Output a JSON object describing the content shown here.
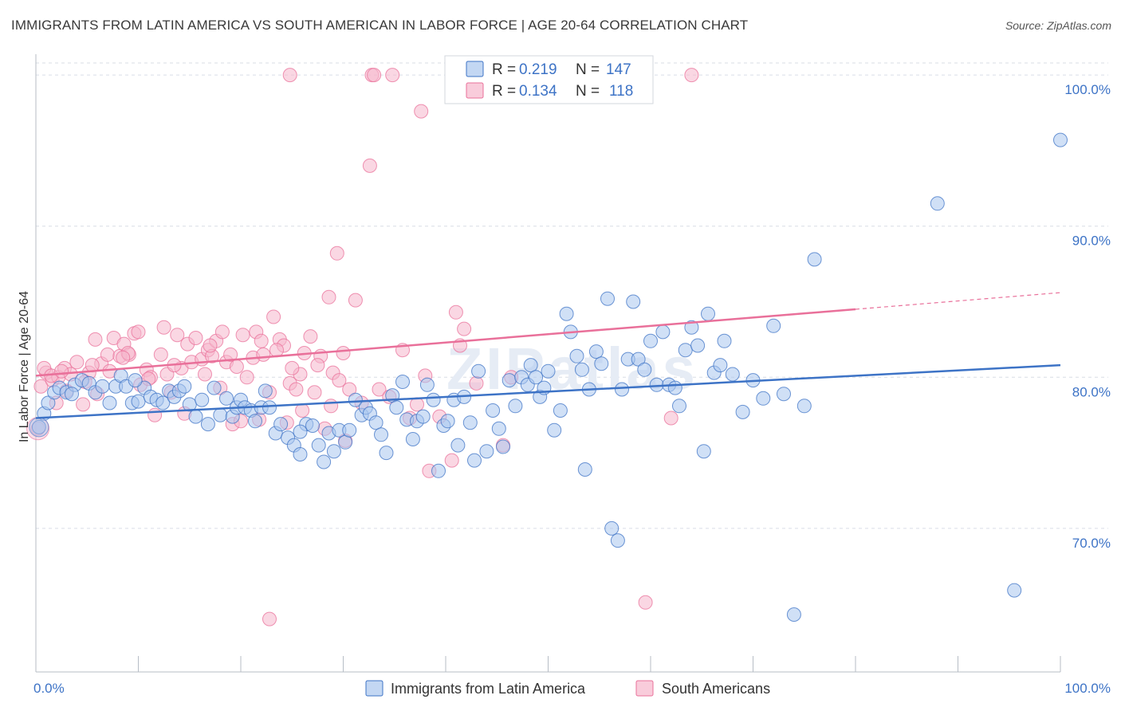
{
  "header": {
    "title": "IMMIGRANTS FROM LATIN AMERICA VS SOUTH AMERICAN IN LABOR FORCE | AGE 20-64 CORRELATION CHART",
    "source": "Source: ZipAtlas.com"
  },
  "watermark": "ZIPatlas",
  "colors": {
    "blue": "#3d73c6",
    "blue_fill": "#a9c6ee",
    "pink": "#e9709a",
    "pink_fill": "#f6b7cc",
    "grid": "#d9dee6",
    "axis": "#b7bdc6"
  },
  "legend": {
    "r_label": "R =",
    "n_label": "N =",
    "blue": {
      "r": "0.219",
      "n": "147"
    },
    "pink": {
      "r": "0.134",
      "n": "118"
    }
  },
  "chart_data": {
    "type": "scatter",
    "xlabel": "",
    "ylabel": "In Labor Force | Age 20-64",
    "xlim": [
      0,
      100
    ],
    "ylim": [
      60.5,
      101.8
    ],
    "y_ticks": [
      70,
      80,
      90,
      100
    ],
    "y_tick_labels": [
      "70.0%",
      "80.0%",
      "90.0%",
      "100.0%"
    ],
    "x_tick_labels": [
      "0.0%",
      "100.0%"
    ],
    "grid": true,
    "legend_position": "top-center",
    "series": [
      {
        "name": "Immigrants from Latin America",
        "color": "#3d73c6",
        "trend": {
          "x": [
            0,
            100
          ],
          "y": [
            77.3,
            80.8
          ]
        },
        "points": [
          [
            0.3,
            76.7
          ],
          [
            0.8,
            77.6
          ],
          [
            1.2,
            78.3
          ],
          [
            1.8,
            79.0
          ],
          [
            2.3,
            79.3
          ],
          [
            3.0,
            79.0
          ],
          [
            3.8,
            79.5
          ],
          [
            4.5,
            79.8
          ],
          [
            5.2,
            79.6
          ],
          [
            5.8,
            79.0
          ],
          [
            6.5,
            79.4
          ],
          [
            7.2,
            78.3
          ],
          [
            7.8,
            79.4
          ],
          [
            8.3,
            80.1
          ],
          [
            8.8,
            79.4
          ],
          [
            9.4,
            78.3
          ],
          [
            10.0,
            78.4
          ],
          [
            10.6,
            79.3
          ],
          [
            11.2,
            78.7
          ],
          [
            11.8,
            78.5
          ],
          [
            12.4,
            78.3
          ],
          [
            13.0,
            79.1
          ],
          [
            13.5,
            78.7
          ],
          [
            14.0,
            79.1
          ],
          [
            14.5,
            79.4
          ],
          [
            15.0,
            78.2
          ],
          [
            15.6,
            77.4
          ],
          [
            16.2,
            78.5
          ],
          [
            16.8,
            76.9
          ],
          [
            17.4,
            79.3
          ],
          [
            18.0,
            77.5
          ],
          [
            18.6,
            78.6
          ],
          [
            19.2,
            77.4
          ],
          [
            19.6,
            78.0
          ],
          [
            20.0,
            78.5
          ],
          [
            20.4,
            78.0
          ],
          [
            21.0,
            77.8
          ],
          [
            21.4,
            77.1
          ],
          [
            22.0,
            78.0
          ],
          [
            22.4,
            79.1
          ],
          [
            22.8,
            78.0
          ],
          [
            23.4,
            76.3
          ],
          [
            23.9,
            76.9
          ],
          [
            24.6,
            76.0
          ],
          [
            25.2,
            75.5
          ],
          [
            25.8,
            74.9
          ],
          [
            26.4,
            76.9
          ],
          [
            27.0,
            76.8
          ],
          [
            27.6,
            75.5
          ],
          [
            28.1,
            74.4
          ],
          [
            28.6,
            76.3
          ],
          [
            29.1,
            75.1
          ],
          [
            29.6,
            76.5
          ],
          [
            30.2,
            75.7
          ],
          [
            30.6,
            76.5
          ],
          [
            31.2,
            78.5
          ],
          [
            31.8,
            77.5
          ],
          [
            32.2,
            78.0
          ],
          [
            32.6,
            77.6
          ],
          [
            33.2,
            77.0
          ],
          [
            33.7,
            76.2
          ],
          [
            34.2,
            75.0
          ],
          [
            34.8,
            78.8
          ],
          [
            35.2,
            78.0
          ],
          [
            35.8,
            79.7
          ],
          [
            36.2,
            77.2
          ],
          [
            36.8,
            75.9
          ],
          [
            37.2,
            77.1
          ],
          [
            37.8,
            77.4
          ],
          [
            38.2,
            79.5
          ],
          [
            38.8,
            78.5
          ],
          [
            39.3,
            73.8
          ],
          [
            39.8,
            76.8
          ],
          [
            40.2,
            77.1
          ],
          [
            40.8,
            78.5
          ],
          [
            41.2,
            75.5
          ],
          [
            41.8,
            78.7
          ],
          [
            42.4,
            77.0
          ],
          [
            42.8,
            74.5
          ],
          [
            43.2,
            80.4
          ],
          [
            44.0,
            75.1
          ],
          [
            44.6,
            77.8
          ],
          [
            45.2,
            76.6
          ],
          [
            45.6,
            75.4
          ],
          [
            46.2,
            79.8
          ],
          [
            46.8,
            78.1
          ],
          [
            47.4,
            80.0
          ],
          [
            48.0,
            79.5
          ],
          [
            48.3,
            80.8
          ],
          [
            48.8,
            80.0
          ],
          [
            49.2,
            78.7
          ],
          [
            49.6,
            79.3
          ],
          [
            50.0,
            80.4
          ],
          [
            50.6,
            76.5
          ],
          [
            51.2,
            77.8
          ],
          [
            51.8,
            84.2
          ],
          [
            52.2,
            83.0
          ],
          [
            52.8,
            81.4
          ],
          [
            53.3,
            80.5
          ],
          [
            53.6,
            73.9
          ],
          [
            54.0,
            79.2
          ],
          [
            54.7,
            81.7
          ],
          [
            55.2,
            80.9
          ],
          [
            55.8,
            85.2
          ],
          [
            56.2,
            70.0
          ],
          [
            56.8,
            69.2
          ],
          [
            57.2,
            79.2
          ],
          [
            57.8,
            81.2
          ],
          [
            58.3,
            85.0
          ],
          [
            58.8,
            81.2
          ],
          [
            59.4,
            80.5
          ],
          [
            60.0,
            82.4
          ],
          [
            60.6,
            79.5
          ],
          [
            61.2,
            83.0
          ],
          [
            61.8,
            79.5
          ],
          [
            62.4,
            79.3
          ],
          [
            62.8,
            78.1
          ],
          [
            63.4,
            81.8
          ],
          [
            64.0,
            83.3
          ],
          [
            64.6,
            82.1
          ],
          [
            65.2,
            75.1
          ],
          [
            65.6,
            84.2
          ],
          [
            66.2,
            80.3
          ],
          [
            66.8,
            80.8
          ],
          [
            67.2,
            82.4
          ],
          [
            68.0,
            80.2
          ],
          [
            69.0,
            77.7
          ],
          [
            70.0,
            79.8
          ],
          [
            71.0,
            78.6
          ],
          [
            72.0,
            83.4
          ],
          [
            73.0,
            78.9
          ],
          [
            74.0,
            64.3
          ],
          [
            75.0,
            78.1
          ],
          [
            76.0,
            87.8
          ],
          [
            88.0,
            91.5
          ],
          [
            95.5,
            65.9
          ],
          [
            100.0,
            95.7
          ],
          [
            3.5,
            78.9
          ],
          [
            9.7,
            79.8
          ],
          [
            25.8,
            76.4
          ]
        ]
      },
      {
        "name": "South Americans",
        "color": "#e9709a",
        "trend": {
          "x": [
            0,
            80
          ],
          "y": [
            80.1,
            84.5
          ]
        },
        "trend_dashed": {
          "x": [
            80,
            100
          ],
          "y": [
            84.5,
            85.6
          ]
        },
        "points": [
          [
            0.2,
            76.6
          ],
          [
            0.5,
            79.4
          ],
          [
            1.0,
            80.3
          ],
          [
            1.6,
            79.8
          ],
          [
            2.2,
            80.0
          ],
          [
            2.8,
            80.6
          ],
          [
            3.4,
            80.2
          ],
          [
            4.0,
            81.0
          ],
          [
            4.6,
            78.2
          ],
          [
            5.2,
            80.3
          ],
          [
            5.8,
            82.5
          ],
          [
            6.4,
            80.9
          ],
          [
            7.0,
            81.5
          ],
          [
            7.6,
            82.6
          ],
          [
            8.2,
            81.4
          ],
          [
            8.6,
            82.2
          ],
          [
            9.1,
            81.5
          ],
          [
            9.6,
            82.9
          ],
          [
            10.2,
            79.5
          ],
          [
            10.8,
            80.5
          ],
          [
            11.2,
            80.0
          ],
          [
            11.6,
            77.5
          ],
          [
            12.2,
            81.5
          ],
          [
            12.8,
            80.2
          ],
          [
            13.2,
            79.0
          ],
          [
            13.8,
            82.8
          ],
          [
            14.2,
            80.6
          ],
          [
            14.8,
            82.2
          ],
          [
            15.2,
            81.0
          ],
          [
            15.6,
            82.6
          ],
          [
            16.2,
            81.2
          ],
          [
            16.8,
            81.8
          ],
          [
            17.2,
            81.4
          ],
          [
            17.6,
            82.4
          ],
          [
            18.2,
            83.0
          ],
          [
            18.6,
            81.0
          ],
          [
            19.2,
            76.9
          ],
          [
            19.6,
            80.7
          ],
          [
            20.2,
            82.8
          ],
          [
            20.6,
            80.0
          ],
          [
            21.2,
            81.3
          ],
          [
            21.8,
            77.2
          ],
          [
            22.2,
            81.5
          ],
          [
            22.8,
            79.0
          ],
          [
            23.2,
            84.0
          ],
          [
            23.8,
            82.5
          ],
          [
            24.2,
            82.1
          ],
          [
            24.8,
            79.6
          ],
          [
            25.4,
            79.2
          ],
          [
            25.8,
            80.2
          ],
          [
            26.2,
            81.6
          ],
          [
            26.8,
            82.7
          ],
          [
            27.2,
            79.0
          ],
          [
            27.8,
            81.4
          ],
          [
            28.2,
            76.6
          ],
          [
            28.6,
            85.3
          ],
          [
            29.0,
            80.3
          ],
          [
            29.6,
            79.8
          ],
          [
            30.2,
            75.8
          ],
          [
            30.6,
            79.2
          ],
          [
            31.2,
            85.1
          ],
          [
            24.8,
            100.0
          ],
          [
            32.8,
            100.0
          ],
          [
            33.0,
            100.0
          ],
          [
            34.8,
            100.0
          ],
          [
            37.6,
            97.6
          ],
          [
            32.6,
            94.0
          ],
          [
            29.4,
            88.2
          ],
          [
            41.0,
            84.3
          ],
          [
            41.4,
            82.1
          ],
          [
            22.8,
            64.0
          ],
          [
            59.5,
            65.1
          ],
          [
            35.8,
            81.8
          ],
          [
            37.2,
            78.2
          ],
          [
            38.4,
            73.8
          ],
          [
            39.4,
            77.4
          ],
          [
            40.6,
            74.5
          ],
          [
            45.6,
            75.5
          ],
          [
            46.4,
            80.0
          ],
          [
            64.0,
            100.0
          ],
          [
            0.8,
            80.6
          ],
          [
            1.5,
            80.1
          ],
          [
            2.0,
            78.3
          ],
          [
            3.0,
            79.1
          ],
          [
            4.8,
            79.7
          ],
          [
            6.0,
            78.9
          ],
          [
            7.2,
            80.4
          ],
          [
            9.0,
            81.6
          ],
          [
            10.0,
            83.0
          ],
          [
            11.0,
            79.9
          ],
          [
            12.5,
            83.3
          ],
          [
            14.5,
            77.6
          ],
          [
            16.5,
            80.2
          ],
          [
            18.0,
            79.3
          ],
          [
            20.0,
            77.1
          ],
          [
            21.5,
            83.0
          ],
          [
            23.5,
            81.8
          ],
          [
            24.5,
            77.0
          ],
          [
            26.0,
            77.8
          ],
          [
            27.5,
            80.8
          ],
          [
            28.8,
            78.1
          ],
          [
            30.0,
            81.6
          ],
          [
            31.8,
            78.3
          ],
          [
            33.5,
            79.2
          ],
          [
            34.5,
            78.7
          ],
          [
            36.5,
            77.3
          ],
          [
            38.0,
            80.1
          ],
          [
            41.8,
            83.2
          ],
          [
            43.0,
            79.6
          ],
          [
            62.0,
            77.3
          ],
          [
            2.5,
            80.4
          ],
          [
            5.5,
            80.8
          ],
          [
            8.5,
            81.3
          ],
          [
            13.5,
            80.8
          ],
          [
            17.0,
            82.1
          ],
          [
            19.0,
            81.5
          ],
          [
            22.0,
            82.4
          ],
          [
            25.0,
            80.6
          ]
        ]
      }
    ]
  },
  "bottom_legend": [
    {
      "label": "Immigrants from Latin America",
      "color": "blue"
    },
    {
      "label": "South Americans",
      "color": "pink"
    }
  ]
}
